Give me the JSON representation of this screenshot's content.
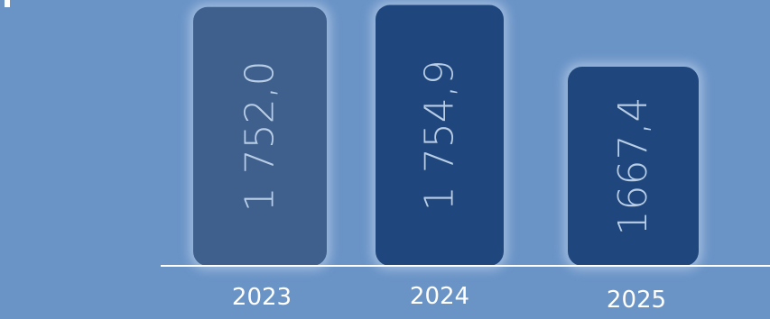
{
  "chart_data": {
    "type": "bar",
    "categories": [
      "2023",
      "2024",
      "2025"
    ],
    "values": [
      1752.0,
      1754.9,
      1667.4
    ],
    "value_labels": [
      "1 752,0",
      "1 754,9",
      "1667,4"
    ],
    "title": "",
    "xlabel": "",
    "ylabel": "",
    "grid": false,
    "colors": {
      "background": "#6a93c6",
      "bar_2023": "#3f5f8c",
      "bar_2024": "#1f477d",
      "bar_2025": "#1f477d",
      "axis": "#ffffff",
      "value_label": "#b8cde6",
      "category_label": "#ffffff"
    }
  }
}
